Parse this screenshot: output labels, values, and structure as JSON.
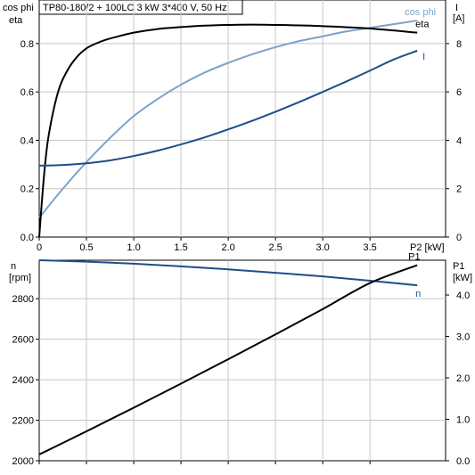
{
  "chart_data": [
    {
      "type": "line",
      "title": "TP80-180/2 + 100LC   3 kW   3*400 V, 50 Hz",
      "xlabel": "P2 [kW]",
      "ylabel_left": [
        "cos phi",
        "eta"
      ],
      "ylabel_right": [
        "I",
        "[A]"
      ],
      "x_ticks": [
        "0",
        "0.5",
        "1.0",
        "1.5",
        "2.0",
        "2.5",
        "3.0",
        "3.5"
      ],
      "yleft_ticks": [
        "0.0",
        "0.2",
        "0.4",
        "0.6",
        "0.8"
      ],
      "yright_ticks": [
        "0",
        "2",
        "4",
        "6",
        "8"
      ],
      "xlim": [
        0,
        4.3
      ],
      "ylim_left": [
        0,
        0.98
      ],
      "ylim_right": [
        0,
        9.8
      ],
      "grid": true,
      "series": [
        {
          "name": "cos phi",
          "axis": "left",
          "color": "#7BA3C9",
          "x": [
            0,
            0.25,
            0.5,
            0.75,
            1.0,
            1.25,
            1.5,
            1.75,
            2.0,
            2.25,
            2.5,
            2.75,
            3.0,
            3.25,
            3.5,
            3.75,
            4.0
          ],
          "y": [
            0.08,
            0.2,
            0.31,
            0.41,
            0.5,
            0.57,
            0.63,
            0.68,
            0.72,
            0.755,
            0.785,
            0.81,
            0.83,
            0.85,
            0.865,
            0.88,
            0.895
          ]
        },
        {
          "name": "eta",
          "axis": "left",
          "color": "#000000",
          "x": [
            0,
            0.05,
            0.1,
            0.2,
            0.3,
            0.4,
            0.5,
            0.6,
            0.7,
            0.8,
            1.0,
            1.25,
            1.5,
            1.75,
            2.0,
            2.25,
            2.5,
            3.0,
            3.5,
            4.0
          ],
          "y": [
            0,
            0.25,
            0.42,
            0.6,
            0.69,
            0.745,
            0.78,
            0.8,
            0.815,
            0.826,
            0.845,
            0.86,
            0.868,
            0.874,
            0.877,
            0.878,
            0.877,
            0.872,
            0.862,
            0.845
          ]
        },
        {
          "name": "I",
          "axis": "right",
          "color": "#1F4E85",
          "x": [
            0,
            0.25,
            0.5,
            0.75,
            1.0,
            1.25,
            1.5,
            1.75,
            2.0,
            2.25,
            2.5,
            2.75,
            3.0,
            3.25,
            3.5,
            3.75,
            4.0
          ],
          "y": [
            2.95,
            2.98,
            3.05,
            3.17,
            3.35,
            3.57,
            3.83,
            4.12,
            4.45,
            4.8,
            5.18,
            5.58,
            6.0,
            6.43,
            6.88,
            7.34,
            7.7
          ]
        }
      ]
    },
    {
      "type": "line",
      "xlabel": "",
      "ylabel_left": [
        "n",
        "[rpm]"
      ],
      "ylabel_right": [
        "P1",
        "[kW]"
      ],
      "yleft_ticks": [
        "2000",
        "2200",
        "2400",
        "2600",
        "2800"
      ],
      "yright_ticks": [
        "0.0",
        "1.0",
        "2.0",
        "3.0",
        "4.0"
      ],
      "xlim": [
        0,
        4.3
      ],
      "ylim_left": [
        2000,
        2990
      ],
      "ylim_right": [
        0,
        4.84
      ],
      "grid": true,
      "series": [
        {
          "name": "n",
          "axis": "left",
          "color": "#1F4E85",
          "x": [
            0,
            0.5,
            1.0,
            1.5,
            2.0,
            2.5,
            3.0,
            3.5,
            4.0
          ],
          "y": [
            2990,
            2983,
            2973,
            2960,
            2945,
            2928,
            2910,
            2889,
            2866
          ]
        },
        {
          "name": "P1",
          "axis": "right",
          "color": "#000000",
          "x": [
            0,
            0.5,
            1.0,
            1.5,
            2.0,
            2.5,
            3.0,
            3.5,
            4.0
          ],
          "y": [
            0.15,
            0.71,
            1.28,
            1.86,
            2.45,
            3.05,
            3.66,
            4.29,
            4.72
          ]
        }
      ]
    }
  ]
}
